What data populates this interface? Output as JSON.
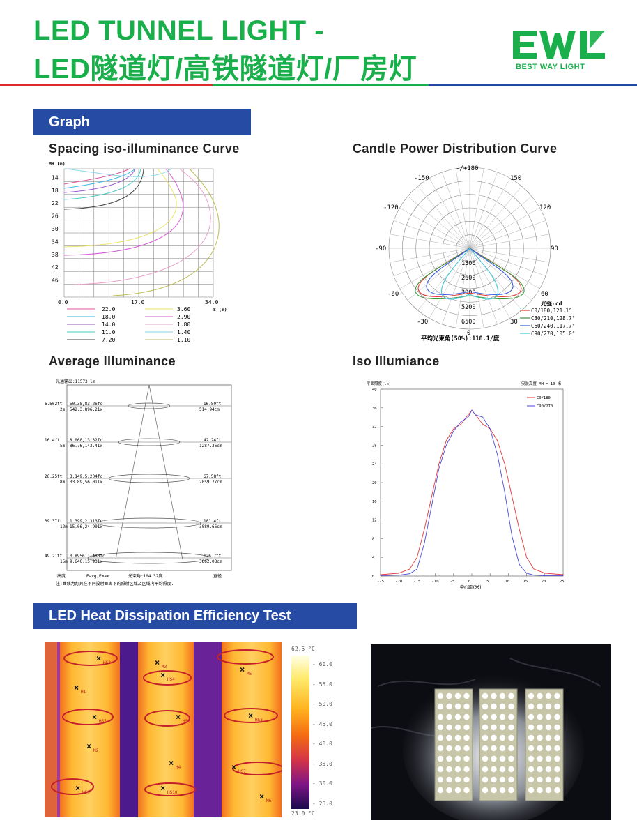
{
  "header": {
    "title_line1": "LED TUNNEL LIGHT -",
    "title_line2": "LED隧道灯/高铁隧道灯/厂房灯",
    "logo_text": "EWL",
    "logo_tagline": "BEST WAY LIGHT"
  },
  "colors": {
    "brand_green": "#19b04b",
    "bar_blue": "#264ba5",
    "rule_red": "#e12a2a",
    "rule_blue": "#2547a3"
  },
  "sections": {
    "graph": "Graph",
    "heat": "LED Heat Dissipation Efficiency Test"
  },
  "spacing_curve": {
    "heading": "Spacing iso-illuminance Curve",
    "y_axis_label": "MH (m)",
    "y_ticks": [
      "14",
      "18",
      "22",
      "26",
      "30",
      "34",
      "38",
      "42",
      "46"
    ],
    "x_ticks": [
      "0.0",
      "17.0",
      "34.0"
    ],
    "x_axis_label": "S (m)",
    "legend_col1": [
      "22.0",
      "18.0",
      "14.0",
      "11.0",
      "7.20"
    ],
    "legend_col2": [
      "3.60",
      "2.90",
      "1.80",
      "1.40",
      "1.10"
    ],
    "legend_colors1": [
      "#e0559c",
      "#3bb6e6",
      "#9b52d0",
      "#49c9c2",
      "#444444"
    ],
    "legend_colors2": [
      "#e9e36a",
      "#d55bd6",
      "#e8a0c9",
      "#8ad6e8",
      "#bdbd55"
    ]
  },
  "candle_curve": {
    "heading": "Candle Power Distribution Curve",
    "angle_labels": [
      "-/+180",
      "-150",
      "150",
      "-120",
      "120",
      "-90",
      "90",
      "-60",
      "60",
      "-30",
      "30",
      "0"
    ],
    "radial_labels": [
      "1300",
      "2600",
      "3900",
      "5200",
      "6500"
    ],
    "unit_label": "光强:cd",
    "legend": [
      "C0/180,121.1°",
      "C30/210,128.7°",
      "C60/240,117.7°",
      "C90/270,105.0°"
    ],
    "legend_colors": [
      "#e23a3a",
      "#3a9a3a",
      "#3a5ae2",
      "#3ac6d8"
    ],
    "beam_label": "平均光束角(50%):118.1/度"
  },
  "avg_illuminance": {
    "heading": "Average Illuminance",
    "flux_label": "光通输出:11573 lm",
    "rows": [
      {
        "left_ft": "6.562ft",
        "left_m": "2m",
        "fc": "50.38,83.26fc",
        "lx": "542.3,896.21x",
        "dia_ft": "16.89ft",
        "dia_cm": "514.94cm"
      },
      {
        "left_ft": "16.4ft",
        "left_m": "5m",
        "fc": "8.060,13.32fc",
        "lx": "86.76,143.41x",
        "dia_ft": "42.24ft",
        "dia_cm": "1287.36cm"
      },
      {
        "left_ft": "26.25ft",
        "left_m": "8m",
        "fc": "3.149,5.204fc",
        "lx": "33.89,56.011x",
        "dia_ft": "67.58ft",
        "dia_cm": "2059.77cm"
      },
      {
        "left_ft": "39.37ft",
        "left_m": "12m",
        "fc": "1.399,2.313fc",
        "lx": "15.06,24.901x",
        "dia_ft": "101.4ft",
        "dia_cm": "3089.66cm"
      },
      {
        "left_ft": "49.21ft",
        "left_m": "15m",
        "fc": "0.8956,1.480fc",
        "lx": "9.640,15.931x",
        "dia_ft": "126.7ft",
        "dia_cm": "3862.08cm"
      }
    ],
    "footer_height": "高度",
    "footer_eavg": "Eavg,Emax",
    "footer_beam": "光束角:104.32度",
    "footer_dia": "直径",
    "note": "注:曲线为灯具在不同投射距离下的照射区域及区域内平均照度."
  },
  "iso_illuminance": {
    "heading": "Iso Illumiance",
    "y_label": "平面照度(lx)",
    "top_right": "安装高度 MH = 10 米",
    "x_label": "中心距(米)",
    "y_ticks": [
      "0",
      "4",
      "8",
      "12",
      "16",
      "20",
      "24",
      "28",
      "32",
      "36",
      "40"
    ],
    "x_ticks": [
      "-25",
      "-20",
      "-15",
      "-10",
      "-5",
      "0",
      "5",
      "10",
      "15",
      "20",
      "25"
    ],
    "legend": [
      "C0/180",
      "C90/270"
    ],
    "legend_colors": [
      "#e03a3a",
      "#4a4ad8"
    ]
  },
  "chart_data": [
    {
      "type": "line",
      "title": "Iso Illumiance",
      "xlabel": "中心距(米)",
      "ylabel": "平面照度(lx)",
      "xlim": [
        -25,
        25
      ],
      "ylim": [
        0,
        40
      ],
      "x": [
        -25,
        -20,
        -17,
        -15,
        -13,
        -11,
        -9,
        -7,
        -5,
        -3,
        -1,
        0,
        1,
        3,
        5,
        7,
        9,
        11,
        13,
        15,
        17,
        20,
        25
      ],
      "series": [
        {
          "name": "C0/180",
          "values": [
            0.3,
            0.6,
            1.5,
            4.0,
            10.0,
            17.0,
            24.0,
            29.0,
            31.5,
            32.5,
            34.5,
            35.5,
            34.5,
            32.5,
            31.5,
            29.0,
            24.0,
            17.0,
            10.0,
            4.0,
            1.5,
            0.6,
            0.3
          ]
        },
        {
          "name": "C90/270",
          "values": [
            0.1,
            0.2,
            0.5,
            1.5,
            7.0,
            15.0,
            23.0,
            28.0,
            31.0,
            33.0,
            34.0,
            35.5,
            34.5,
            34.0,
            31.5,
            26.0,
            18.0,
            8.5,
            2.5,
            0.6,
            0.2,
            0.1,
            0.1
          ]
        }
      ]
    }
  ],
  "thermal": {
    "max_label": "62.5 °C",
    "min_label": "23.0 °C",
    "scale_ticks": [
      "60.0",
      "55.0",
      "50.0",
      "45.0",
      "40.0",
      "35.0",
      "30.0",
      "25.0"
    ],
    "markers": [
      "HS3",
      "M3",
      "HS4",
      "M5",
      "H1",
      "HS5",
      "HS6",
      "HS8",
      "M2",
      "H4",
      "HS7",
      "HS9",
      "HS10",
      "M6"
    ]
  }
}
